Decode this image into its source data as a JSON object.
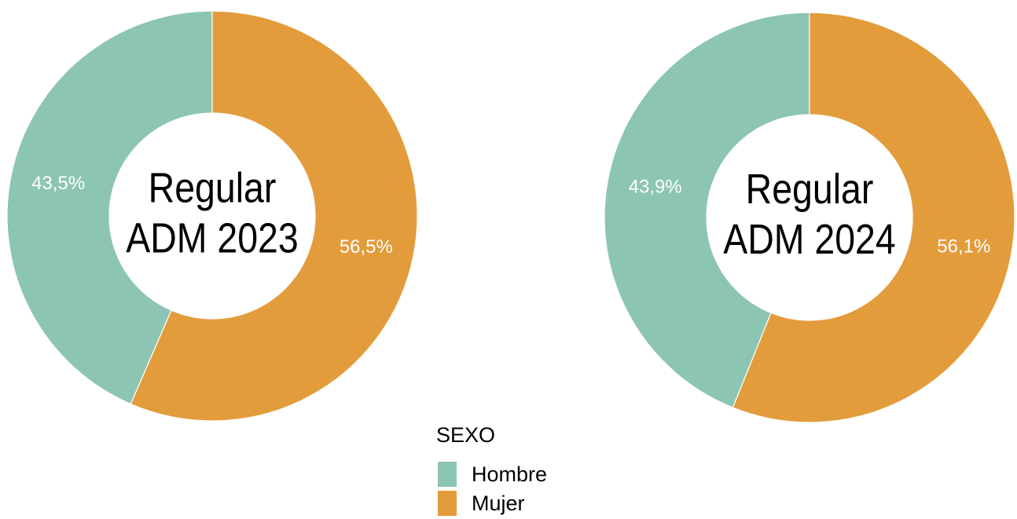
{
  "chart_data": [
    {
      "type": "pie",
      "title": [
        "Regular",
        "ADM 2023"
      ],
      "categories": [
        "Hombre",
        "Mujer"
      ],
      "values": [
        43.5,
        56.5
      ],
      "value_labels": [
        "43,5%",
        "56,5%"
      ],
      "colors": [
        "#8cc5b3",
        "#e39c3c"
      ]
    },
    {
      "type": "pie",
      "title": [
        "Regular",
        "ADM 2024"
      ],
      "categories": [
        "Hombre",
        "Mujer"
      ],
      "values": [
        43.9,
        56.1
      ],
      "value_labels": [
        "43,9%",
        "56,1%"
      ],
      "colors": [
        "#8cc5b3",
        "#e39c3c"
      ]
    }
  ],
  "legend": {
    "title": "SEXO"
  }
}
